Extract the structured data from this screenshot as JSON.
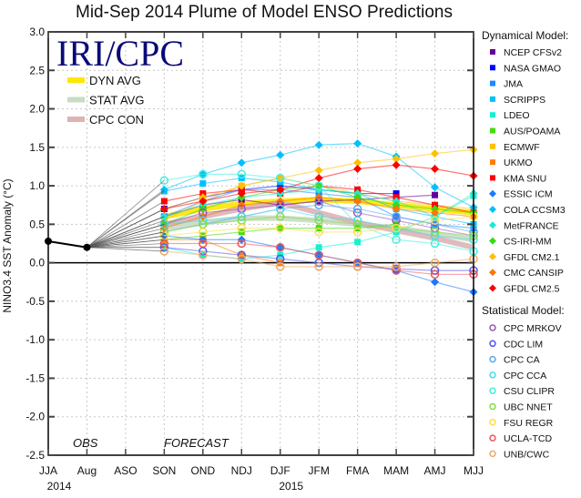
{
  "chart_data": {
    "type": "line",
    "title": "Mid-Sep 2014 Plume of Model ENSO Predictions",
    "logo": "IRI/CPC",
    "ylabel": "NINO3.4 SST Anomaly (°C)",
    "ylim": [
      -2.5,
      3.0
    ],
    "yticks": [
      3.0,
      2.5,
      2.0,
      1.5,
      1.0,
      0.5,
      0.0,
      -0.5,
      -1.0,
      -1.5,
      -2.0,
      -2.5
    ],
    "categories": [
      "JJA",
      "Aug",
      "ASO",
      "SON",
      "OND",
      "NDJ",
      "DJF",
      "JFM",
      "FMA",
      "MAM",
      "AMJ",
      "MJJ"
    ],
    "year_labels": [
      {
        "text": "2014",
        "at": "JJA"
      },
      {
        "text": "2015",
        "at": "DJF"
      }
    ],
    "annotations": {
      "obs": "OBS",
      "forecast": "FORECAST"
    },
    "grid": true,
    "observed": {
      "categories": [
        "JJA",
        "Aug"
      ],
      "values": [
        0.28,
        0.2
      ],
      "color": "#000000"
    },
    "forecast_start": "SON",
    "averages_legend_placement": "top-left",
    "averages": [
      {
        "name": "DYN AVG",
        "color": "#ffe600",
        "values": [
          0.6,
          0.7,
          0.77,
          0.8,
          0.82,
          0.8,
          0.75,
          0.7,
          0.65
        ]
      },
      {
        "name": "STAT AVG",
        "color": "#c9dcc4",
        "values": [
          0.45,
          0.52,
          0.58,
          0.58,
          0.55,
          0.5,
          0.45,
          0.38,
          0.3
        ]
      },
      {
        "name": "CPC CON",
        "color": "#dcb4b4",
        "values": [
          0.5,
          0.6,
          0.7,
          0.78,
          0.65,
          0.52,
          0.42,
          0.32,
          0.2
        ]
      }
    ],
    "legend_placement": "right",
    "dynamical_heading": "Dynamical Model:",
    "dynamical": [
      {
        "name": "NCEP CFSv2",
        "marker": "square",
        "color": "#660099",
        "values": [
          0.6,
          0.75,
          0.82,
          0.75,
          0.8,
          0.82,
          0.85,
          0.88
        ]
      },
      {
        "name": "NASA GMAO",
        "marker": "square",
        "color": "#0000ff",
        "values": [
          0.7,
          0.85,
          0.95,
          1.0,
          0.95,
          0.9,
          0.9
        ]
      },
      {
        "name": "JMA",
        "marker": "square",
        "color": "#1e88ff",
        "values": [
          0.6,
          0.8,
          0.95,
          0.95,
          0.9,
          0.85,
          0.6,
          0.5,
          0.45
        ]
      },
      {
        "name": "SCRIPPS",
        "marker": "square",
        "color": "#00c0ff",
        "values": [
          0.93,
          1.03,
          1.1,
          1.05,
          0.95,
          0.9,
          0.7,
          0.6,
          0.5
        ]
      },
      {
        "name": "LDEO",
        "marker": "square",
        "color": "#18f0d0",
        "values": [
          0.2,
          0.1,
          0.05,
          0.1,
          0.2,
          0.27,
          0.4,
          0.6,
          0.87
        ]
      },
      {
        "name": "AUS/POAMA",
        "marker": "square",
        "color": "#44dd11",
        "values": [
          0.3,
          0.35,
          0.4,
          0.45,
          0.45,
          0.45,
          0.5
        ]
      },
      {
        "name": "ECMWF",
        "marker": "square",
        "color": "#ffc000",
        "values": [
          0.55,
          0.8,
          1.0,
          1.1,
          1.0,
          0.9,
          0.8,
          0.75,
          0.7
        ]
      },
      {
        "name": "UKMO",
        "marker": "square",
        "color": "#ff7f00",
        "values": [
          0.3,
          0.3,
          0.1,
          0.0
        ]
      },
      {
        "name": "KMA SNU",
        "marker": "square",
        "color": "#ff0000",
        "values": [
          0.8,
          0.9,
          0.95,
          0.9,
          1.0,
          0.95,
          0.85,
          0.75,
          0.65
        ]
      },
      {
        "name": "ESSIC ICM",
        "marker": "diamond",
        "color": "#1e78ff",
        "values": [
          0.35,
          0.3,
          0.3,
          0.2,
          0.1,
          0.0,
          -0.1,
          -0.25,
          -0.38
        ]
      },
      {
        "name": "COLA CCSM3",
        "marker": "diamond",
        "color": "#00c0ff",
        "values": [
          0.95,
          1.15,
          1.3,
          1.4,
          1.53,
          1.55,
          1.38,
          0.98,
          0.72
        ]
      },
      {
        "name": "MetFRANCE",
        "marker": "diamond",
        "color": "#22e8d0",
        "values": [
          0.6,
          0.75,
          0.85,
          0.9,
          0.95,
          0.9,
          0.8,
          0.6,
          0.9
        ]
      },
      {
        "name": "CS-IRI-MM",
        "marker": "diamond",
        "color": "#33dd11",
        "values": [
          0.5,
          0.7,
          0.85,
          0.95,
          1.0,
          0.85,
          0.75,
          0.7,
          0.65
        ]
      },
      {
        "name": "GFDL CM2.1",
        "marker": "diamond",
        "color": "#ffc000",
        "values": [
          0.7,
          0.85,
          1.0,
          1.1,
          1.2,
          1.3,
          1.35,
          1.42,
          1.47
        ]
      },
      {
        "name": "CMC CANSIP",
        "marker": "diamond",
        "color": "#ff7700",
        "values": [
          0.45,
          0.6,
          0.75,
          0.8,
          0.85,
          0.8,
          0.7,
          0.65,
          0.6
        ]
      },
      {
        "name": "GFDL CM2.5",
        "marker": "diamond",
        "color": "#ff0000",
        "values": [
          0.7,
          0.8,
          0.9,
          0.95,
          1.1,
          1.22,
          1.27,
          1.22,
          1.13
        ]
      }
    ],
    "statistical_heading": "Statistical Model:",
    "statistical": [
      {
        "name": "CPC MRKOV",
        "marker": "circle",
        "color": "#9955bb",
        "values": [
          0.5,
          0.65,
          0.7,
          0.75,
          0.8,
          0.65,
          0.55,
          0.45,
          0.35
        ]
      },
      {
        "name": "CDC LIM",
        "marker": "circle",
        "color": "#5555ee",
        "values": [
          0.2,
          0.15,
          0.1,
          0.05,
          0.0,
          -0.05,
          -0.08,
          -0.1,
          -0.1
        ]
      },
      {
        "name": "CPC CA",
        "marker": "circle",
        "color": "#55aaee",
        "values": [
          0.4,
          0.5,
          0.6,
          0.7,
          0.75,
          0.7,
          0.6,
          0.5,
          0.4
        ]
      },
      {
        "name": "CPC CCA",
        "marker": "circle",
        "color": "#44ddee",
        "values": [
          0.5,
          0.55,
          0.6,
          0.7,
          0.6,
          0.55,
          0.45,
          0.35,
          0.3
        ]
      },
      {
        "name": "CSU CLIPR",
        "marker": "circle",
        "color": "#44eedd",
        "values": [
          1.07,
          1.15,
          1.15,
          1.1,
          1.0,
          0.5,
          0.3,
          0.25,
          0.15
        ]
      },
      {
        "name": "UBC NNET",
        "marker": "circle",
        "color": "#88dd44",
        "values": [
          0.4,
          0.5,
          0.55,
          0.6,
          0.55,
          0.5,
          0.45,
          0.4,
          0.35
        ]
      },
      {
        "name": "FSU REGR",
        "marker": "circle",
        "color": "#ffdd44",
        "values": [
          0.35,
          0.4,
          0.45,
          0.45,
          0.4,
          0.4,
          0.45,
          0.55,
          0.6
        ]
      },
      {
        "name": "UCLA-TCD",
        "marker": "circle",
        "color": "#ee5555",
        "values": [
          0.25,
          0.25,
          0.25,
          0.2,
          0.1,
          0.0,
          -0.1,
          -0.15,
          -0.15
        ]
      },
      {
        "name": "UNB/CWC",
        "marker": "circle",
        "color": "#eeaa66",
        "values": [
          0.15,
          0.1,
          0.05,
          -0.05,
          -0.05,
          -0.05,
          -0.05,
          0.0,
          0.05
        ]
      }
    ]
  }
}
